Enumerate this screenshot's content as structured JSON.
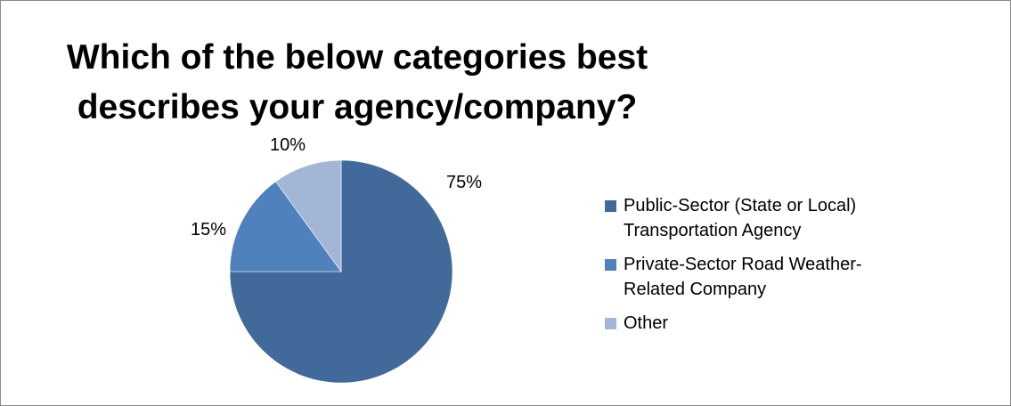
{
  "chart_data": {
    "type": "pie",
    "title_lines": [
      "Which of the below categories best",
      "describes your agency/company?"
    ],
    "slices": [
      {
        "label": "Public-Sector (State or Local)\nTransportation Agency",
        "value": 75,
        "data_label": "75%",
        "color": "#416A9B"
      },
      {
        "label": "Private-Sector Road Weather-\nRelated Company",
        "value": 15,
        "data_label": "15%",
        "color": "#4F81BD"
      },
      {
        "label": "Other",
        "value": 10,
        "data_label": "10%",
        "color": "#A4B6D6"
      }
    ],
    "start_angle_deg": 0,
    "direction": "clockwise",
    "legend_position": "right"
  }
}
